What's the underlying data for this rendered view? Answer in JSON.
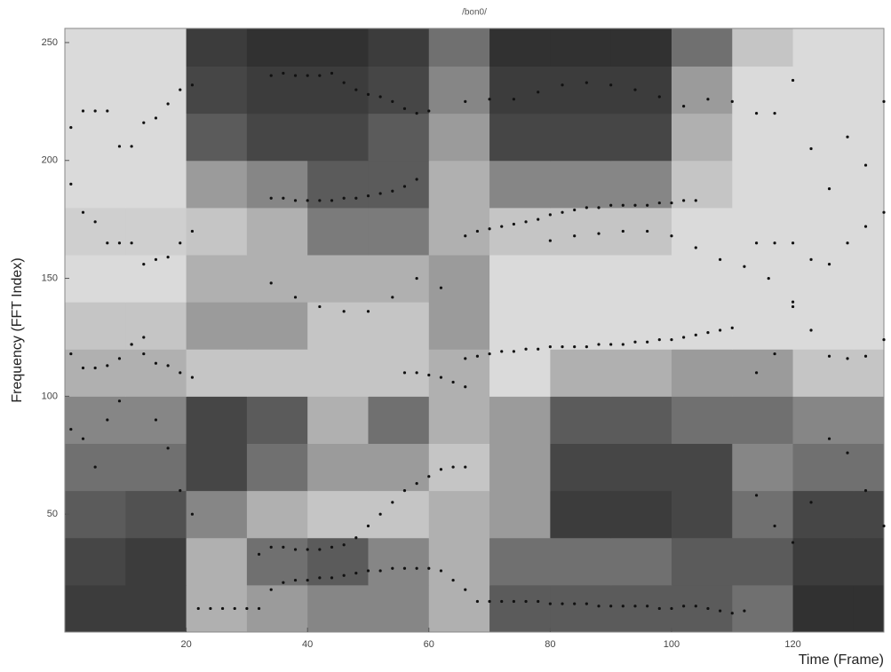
{
  "chart_data": {
    "type": "spectrogram",
    "title": "/bon0/",
    "x_label": "Time (Frame)",
    "y_label": "Frequency (FFT Index)",
    "xlim": [
      0,
      135
    ],
    "ylim": [
      0,
      256
    ],
    "xticks": [
      20,
      40,
      60,
      80,
      100,
      120
    ],
    "yticks": [
      50,
      100,
      150,
      200,
      250
    ],
    "colormap": [
      "#efefef",
      "#1c1c1c"
    ],
    "heatmap": {
      "x_edges": [
        0,
        10,
        20,
        30,
        40,
        50,
        60,
        70,
        80,
        90,
        100,
        110,
        120,
        130,
        135
      ],
      "y_edges": [
        0,
        20,
        40,
        60,
        80,
        100,
        120,
        140,
        160,
        180,
        200,
        220,
        240,
        256
      ],
      "values": [
        [
          0.85,
          0.85,
          0.3,
          0.4,
          0.5,
          0.5,
          0.3,
          0.7,
          0.7,
          0.7,
          0.7,
          0.6,
          0.9,
          0.9
        ],
        [
          0.8,
          0.85,
          0.3,
          0.6,
          0.7,
          0.5,
          0.3,
          0.6,
          0.6,
          0.6,
          0.7,
          0.7,
          0.85,
          0.85
        ],
        [
          0.7,
          0.75,
          0.5,
          0.3,
          0.2,
          0.2,
          0.3,
          0.4,
          0.85,
          0.85,
          0.8,
          0.6,
          0.8,
          0.8
        ],
        [
          0.6,
          0.6,
          0.8,
          0.6,
          0.4,
          0.4,
          0.2,
          0.4,
          0.8,
          0.8,
          0.8,
          0.5,
          0.6,
          0.6
        ],
        [
          0.5,
          0.5,
          0.8,
          0.7,
          0.3,
          0.6,
          0.3,
          0.4,
          0.7,
          0.7,
          0.6,
          0.6,
          0.5,
          0.5
        ],
        [
          0.3,
          0.3,
          0.2,
          0.2,
          0.2,
          0.2,
          0.3,
          0.1,
          0.3,
          0.3,
          0.4,
          0.4,
          0.2,
          0.2
        ],
        [
          0.2,
          0.2,
          0.4,
          0.4,
          0.2,
          0.2,
          0.4,
          0.1,
          0.1,
          0.1,
          0.1,
          0.1,
          0.1,
          0.1
        ],
        [
          0.1,
          0.1,
          0.3,
          0.3,
          0.3,
          0.3,
          0.4,
          0.1,
          0.1,
          0.1,
          0.1,
          0.1,
          0.1,
          0.1
        ],
        [
          0.15,
          0.15,
          0.2,
          0.3,
          0.55,
          0.55,
          0.3,
          0.2,
          0.2,
          0.2,
          0.1,
          0.1,
          0.1,
          0.1
        ],
        [
          0.1,
          0.1,
          0.4,
          0.5,
          0.7,
          0.7,
          0.3,
          0.5,
          0.5,
          0.5,
          0.2,
          0.1,
          0.1,
          0.1
        ],
        [
          0.1,
          0.1,
          0.7,
          0.8,
          0.8,
          0.7,
          0.4,
          0.8,
          0.8,
          0.8,
          0.3,
          0.1,
          0.1,
          0.1
        ],
        [
          0.1,
          0.1,
          0.8,
          0.85,
          0.85,
          0.8,
          0.5,
          0.85,
          0.85,
          0.85,
          0.4,
          0.1,
          0.1,
          0.1
        ],
        [
          0.1,
          0.1,
          0.85,
          0.9,
          0.9,
          0.85,
          0.6,
          0.9,
          0.9,
          0.9,
          0.6,
          0.2,
          0.1,
          0.1
        ]
      ]
    },
    "series": [
      {
        "color": "#111111",
        "x": [
          22,
          24,
          26,
          28,
          30,
          32,
          34,
          36,
          38,
          40,
          42,
          44,
          46,
          48,
          50,
          52,
          54,
          56,
          58,
          60,
          62,
          64,
          66,
          68,
          70,
          72,
          74,
          76,
          78,
          80,
          82,
          84,
          86,
          88,
          90,
          92,
          94,
          96,
          98,
          100,
          102,
          104,
          106,
          108,
          110,
          112
        ],
        "values": [
          10,
          10,
          10,
          10,
          10,
          10,
          18,
          21,
          22,
          22,
          23,
          23,
          24,
          25,
          26,
          26,
          27,
          27,
          27,
          27,
          26,
          22,
          18,
          13,
          13,
          13,
          13,
          13,
          13,
          12,
          12,
          12,
          12,
          11,
          11,
          11,
          11,
          11,
          10,
          10,
          11,
          11,
          10,
          9,
          8,
          9
        ]
      },
      {
        "color": "#111111",
        "x": [
          32,
          34,
          36,
          38,
          40,
          42,
          44,
          46,
          48,
          50,
          52,
          54,
          56,
          58,
          60,
          62,
          64,
          66
        ],
        "values": [
          33,
          36,
          36,
          35,
          35,
          35,
          36,
          37,
          40,
          45,
          50,
          55,
          60,
          63,
          66,
          69,
          70,
          70
        ]
      },
      {
        "color": "#111111",
        "x": [
          66,
          68,
          70,
          72,
          74,
          76,
          78,
          80,
          82,
          84,
          86,
          88,
          90,
          92,
          94,
          96,
          98,
          100,
          102,
          104,
          106,
          108,
          110
        ],
        "values": [
          116,
          117,
          118,
          119,
          119,
          120,
          120,
          121,
          121,
          121,
          121,
          122,
          122,
          122,
          123,
          123,
          124,
          124,
          125,
          126,
          127,
          128,
          129
        ]
      },
      {
        "color": "#111111",
        "x": [
          66,
          68,
          70,
          72,
          74,
          76,
          78,
          80,
          82,
          84,
          86,
          88,
          90,
          92,
          94,
          96,
          98,
          100,
          102,
          104
        ],
        "values": [
          168,
          170,
          171,
          172,
          173,
          174,
          175,
          177,
          178,
          179,
          180,
          180,
          181,
          181,
          181,
          181,
          182,
          182,
          183,
          183
        ]
      },
      {
        "color": "#111111",
        "x": [
          34,
          36,
          38,
          40,
          42,
          44,
          46,
          48,
          50,
          52,
          54,
          56,
          58
        ],
        "values": [
          184,
          184,
          183,
          183,
          183,
          183,
          184,
          184,
          185,
          186,
          187,
          189,
          192
        ]
      },
      {
        "color": "#111111",
        "x": [
          34,
          36,
          38,
          40,
          42,
          44,
          46,
          48,
          50,
          52,
          54,
          56,
          58,
          60
        ],
        "values": [
          236,
          237,
          236,
          236,
          236,
          237,
          233,
          230,
          228,
          227,
          225,
          222,
          220,
          221
        ]
      },
      {
        "color": "#111111",
        "x": [
          66,
          70,
          74,
          78,
          82,
          86,
          90,
          94,
          98,
          102,
          106,
          110
        ],
        "values": [
          225,
          226,
          226,
          229,
          232,
          233,
          232,
          230,
          227,
          223,
          226,
          225
        ]
      },
      {
        "color": "#111111",
        "x": [
          34,
          38,
          42,
          46,
          50,
          54,
          58,
          62
        ],
        "values": [
          148,
          142,
          138,
          136,
          136,
          142,
          150,
          146
        ]
      },
      {
        "color": "#111111",
        "x": [
          56,
          58,
          60,
          62,
          64,
          66
        ],
        "values": [
          110,
          110,
          109,
          108,
          106,
          104
        ]
      },
      {
        "color": "#111111",
        "x": [
          80,
          84,
          88,
          92,
          96,
          100,
          104,
          108,
          112,
          116,
          120
        ],
        "values": [
          166,
          168,
          169,
          170,
          170,
          168,
          163,
          158,
          155,
          150,
          140
        ]
      },
      {
        "color": "#111111",
        "x": [
          1,
          3,
          5,
          7,
          9,
          11,
          13,
          15,
          17,
          19,
          21
        ],
        "values": [
          214,
          221,
          221,
          221,
          206,
          206,
          216,
          218,
          224,
          230,
          232
        ]
      },
      {
        "color": "#111111",
        "x": [
          1,
          3,
          5,
          7,
          9,
          11,
          13,
          15,
          17,
          19,
          21
        ],
        "values": [
          190,
          178,
          174,
          165,
          165,
          165,
          156,
          158,
          159,
          165,
          170
        ]
      },
      {
        "color": "#111111",
        "x": [
          1,
          3,
          5,
          7,
          9,
          11,
          13,
          15,
          17,
          19,
          21
        ],
        "values": [
          118,
          112,
          112,
          113,
          116,
          122,
          118,
          114,
          113,
          110,
          108
        ]
      },
      {
        "color": "#111111",
        "x": [
          1,
          3,
          5,
          7,
          9,
          11,
          13,
          15,
          17,
          19,
          21
        ],
        "values": [
          86,
          82,
          70,
          90,
          98,
          122,
          125,
          90,
          78,
          60,
          50
        ]
      },
      {
        "color": "#111111",
        "x": [
          114,
          117,
          120,
          123,
          126,
          129,
          132,
          135
        ],
        "values": [
          220,
          220,
          234,
          205,
          188,
          210,
          198,
          225
        ]
      },
      {
        "color": "#111111",
        "x": [
          114,
          117,
          120,
          123,
          126,
          129,
          132,
          135
        ],
        "values": [
          165,
          165,
          165,
          158,
          156,
          165,
          172,
          178
        ]
      },
      {
        "color": "#111111",
        "x": [
          114,
          117,
          120,
          123,
          126,
          129,
          132,
          135
        ],
        "values": [
          110,
          118,
          138,
          128,
          117,
          116,
          117,
          124
        ]
      },
      {
        "color": "#111111",
        "x": [
          114,
          117,
          120,
          123,
          126,
          129,
          132,
          135
        ],
        "values": [
          58,
          45,
          38,
          55,
          82,
          76,
          60,
          45
        ]
      }
    ]
  }
}
